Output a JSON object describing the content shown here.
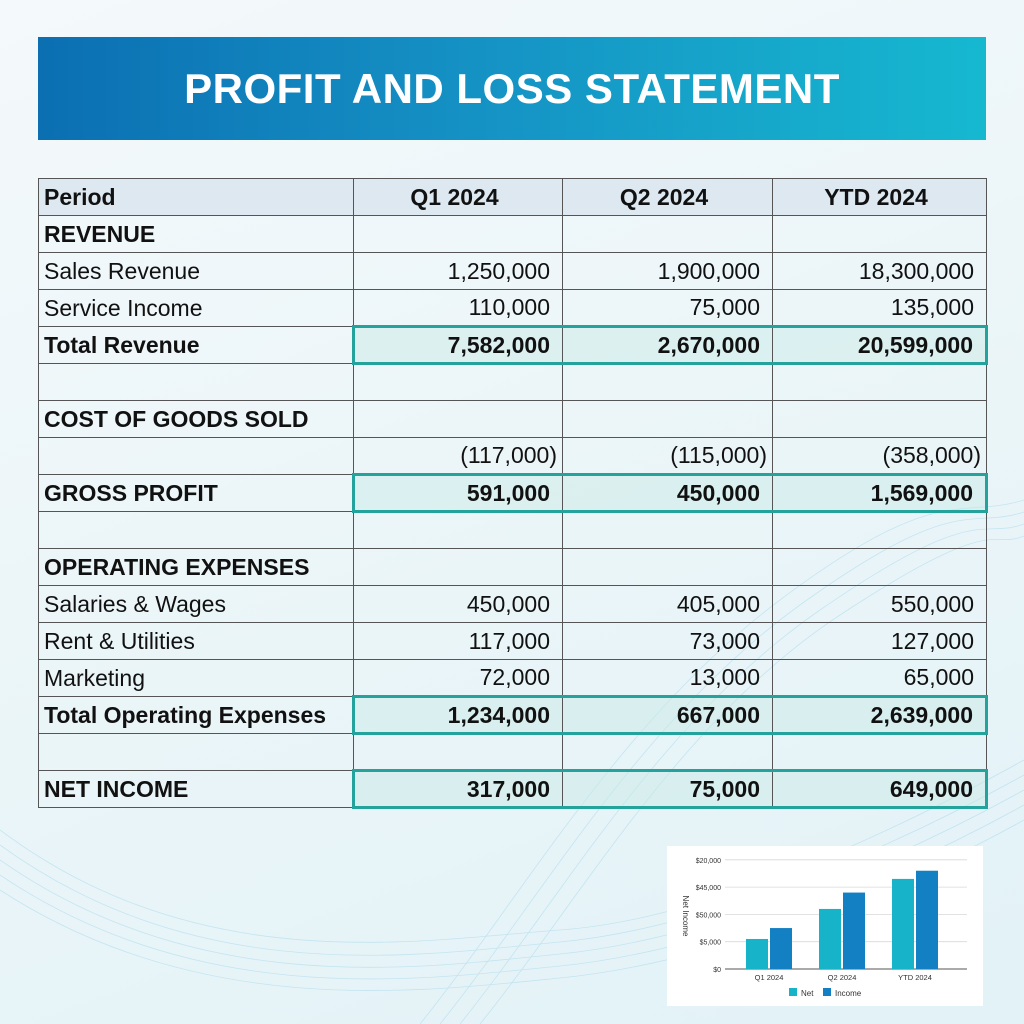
{
  "title": "PROFIT AND LOSS STATEMENT",
  "colors": {
    "banner_start": "#0b6fb2",
    "banner_end": "#16b8d0",
    "highlight_border": "#23a39b",
    "header_bg": "#dde8f1",
    "series_net": "#17b3c9",
    "series_income": "#1480c4"
  },
  "table": {
    "headers": [
      "Period",
      "Q1 2024",
      "Q2 2024",
      "YTD 2024"
    ],
    "rows": [
      {
        "label": "REVENUE",
        "type": "section",
        "values": [
          "",
          "",
          ""
        ]
      },
      {
        "label": "Sales Revenue",
        "type": "item",
        "values": [
          "1,250,000",
          "1,900,000",
          "18,300,000"
        ]
      },
      {
        "label": "Service Income",
        "type": "item",
        "values": [
          "110,000",
          "75,000",
          "135,000"
        ]
      },
      {
        "label": "Total Revenue",
        "type": "total",
        "values": [
          "7,582,000",
          "2,670,000",
          "20,599,000"
        ]
      },
      {
        "label": "",
        "type": "blank",
        "values": [
          "",
          "",
          ""
        ]
      },
      {
        "label": "COST OF GOODS SOLD",
        "type": "section",
        "values": [
          "",
          "",
          ""
        ]
      },
      {
        "label": "",
        "type": "neg",
        "values": [
          "(117,000)",
          "(115,000)",
          "(358,000)"
        ]
      },
      {
        "label": "GROSS PROFIT",
        "type": "total",
        "values": [
          "591,000",
          "450,000",
          "1,569,000"
        ]
      },
      {
        "label": "",
        "type": "blank",
        "values": [
          "",
          "",
          ""
        ]
      },
      {
        "label": "OPERATING EXPENSES",
        "type": "section",
        "values": [
          "",
          "",
          ""
        ]
      },
      {
        "label": "Salaries & Wages",
        "type": "item",
        "values": [
          "450,000",
          "405,000",
          "550,000"
        ]
      },
      {
        "label": "Rent & Utilities",
        "type": "item",
        "values": [
          "117,000",
          "73,000",
          "127,000"
        ]
      },
      {
        "label": "Marketing",
        "type": "item",
        "values": [
          "72,000",
          "13,000",
          "65,000"
        ]
      },
      {
        "label": "Total Operating Expenses",
        "type": "total",
        "values": [
          "1,234,000",
          "667,000",
          "2,639,000"
        ]
      },
      {
        "label": "",
        "type": "blank",
        "values": [
          "",
          "",
          ""
        ]
      },
      {
        "label": "NET INCOME",
        "type": "total",
        "values": [
          "317,000",
          "75,000",
          "649,000"
        ]
      }
    ]
  },
  "chart_data": {
    "type": "bar",
    "title": "",
    "xlabel": "",
    "ylabel": "Net Income",
    "categories": [
      "Q1 2024",
      "Q2 2024",
      "YTD 2024"
    ],
    "y_tick_labels": [
      "$0",
      "$5,000",
      "$50,000",
      "$45,000",
      "$20,000"
    ],
    "grid": true,
    "legend_position": "bottom",
    "series": [
      {
        "name": "Net",
        "values_in_tick_units": [
          1.1,
          2.2,
          3.3
        ]
      },
      {
        "name": "Income",
        "values_in_tick_units": [
          1.5,
          2.8,
          3.6
        ]
      }
    ],
    "note": "Tick labels are non-monotonic as displayed; bar heights given in gridline units (0-4)."
  }
}
